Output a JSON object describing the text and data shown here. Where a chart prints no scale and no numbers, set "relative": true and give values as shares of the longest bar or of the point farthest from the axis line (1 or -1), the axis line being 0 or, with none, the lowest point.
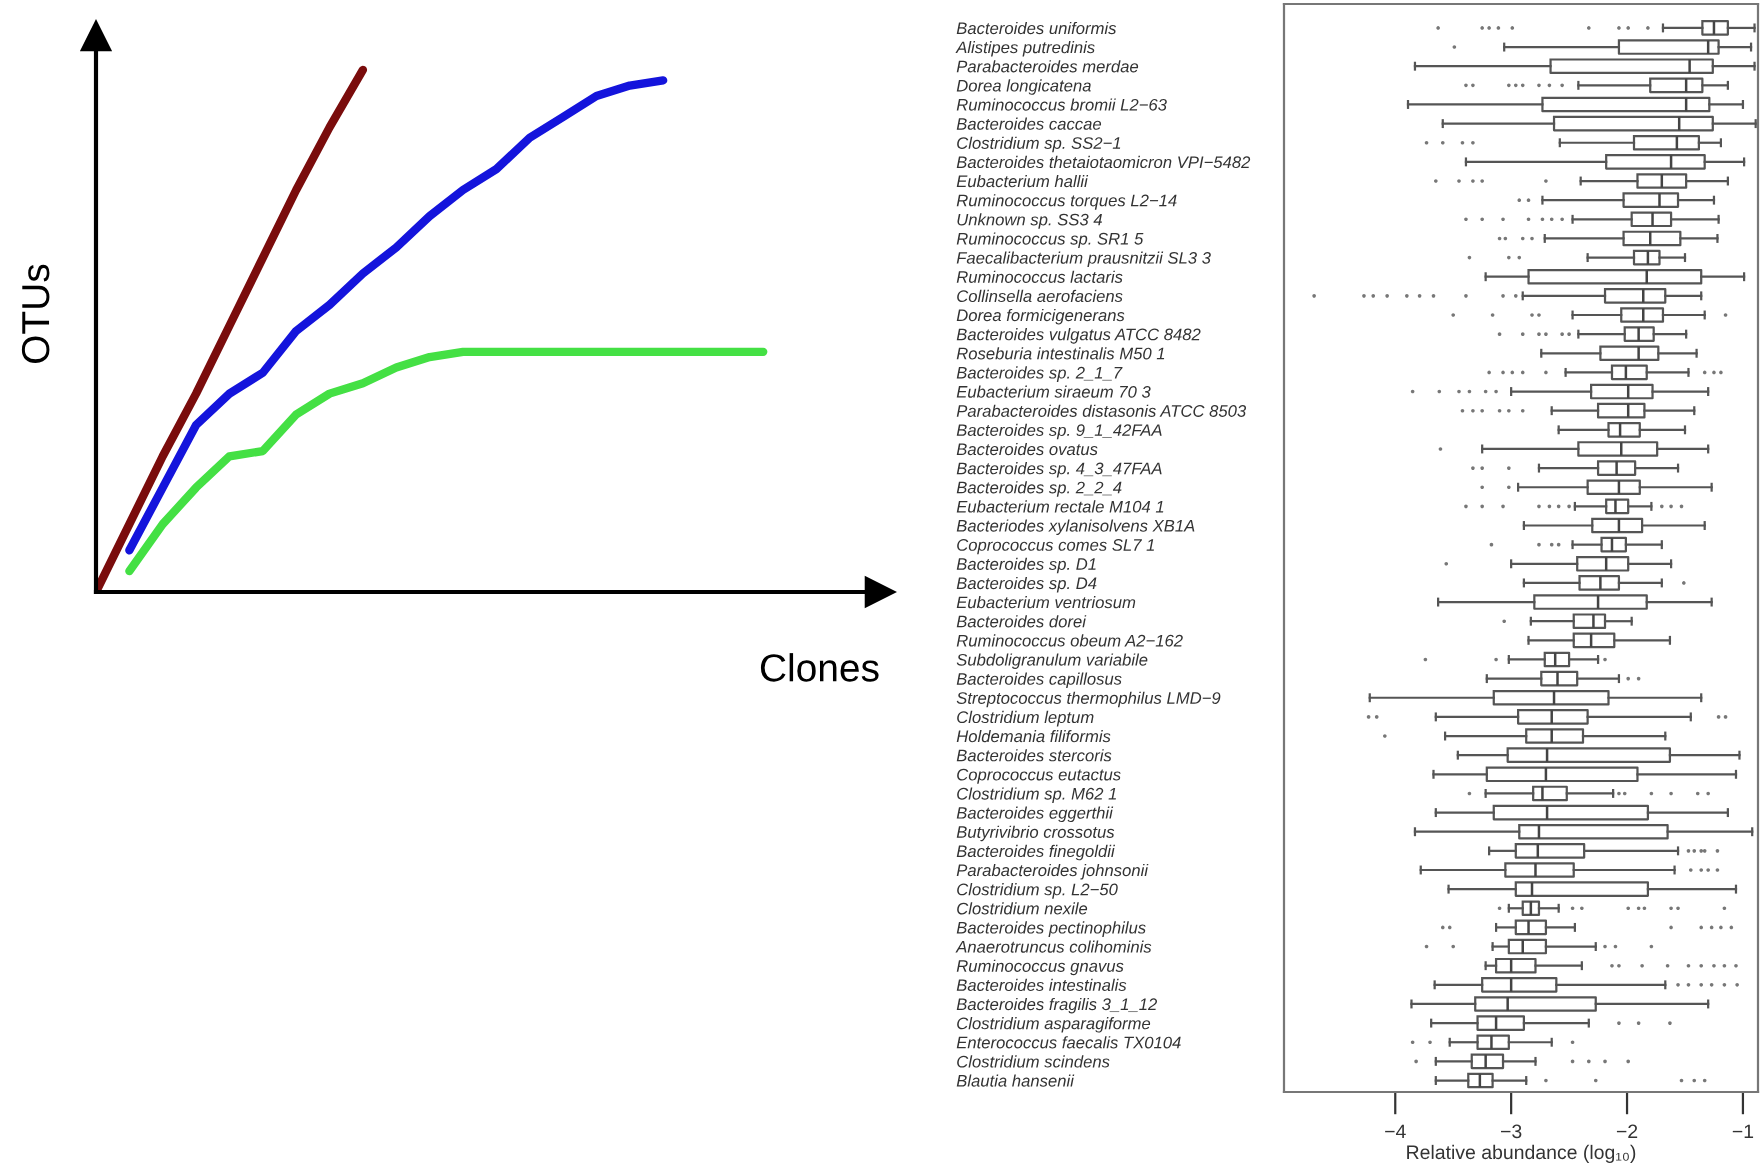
{
  "chart_data": [
    {
      "type": "line",
      "xlabel": "Clones",
      "ylabel": "OTUs",
      "relative": true,
      "categories": [
        null,
        null,
        null,
        null,
        null,
        null,
        null,
        null,
        null,
        null,
        null,
        null,
        null,
        null,
        null,
        null,
        null,
        null,
        null,
        null,
        null,
        null,
        null,
        null
      ],
      "series": [
        {
          "color": "#7a0c0c",
          "values": [
            0,
            0.13,
            0.26,
            0.38,
            0.51,
            0.64,
            0.77,
            0.89,
            1.0,
            null,
            null,
            null,
            null,
            null,
            null,
            null,
            null,
            null,
            null,
            null,
            null,
            null,
            null,
            null
          ]
        },
        {
          "color": "#1414dc",
          "values": [
            null,
            0.08,
            0.2,
            0.32,
            0.38,
            0.42,
            0.5,
            0.55,
            0.61,
            0.66,
            0.72,
            0.77,
            0.81,
            0.87,
            0.91,
            0.95,
            0.97,
            0.98,
            null,
            null,
            null,
            null,
            null,
            null
          ]
        },
        {
          "color": "#44e044",
          "values": [
            null,
            0.04,
            0.13,
            0.2,
            0.26,
            0.27,
            0.34,
            0.38,
            0.4,
            0.43,
            0.45,
            0.46,
            0.46,
            0.46,
            0.46,
            0.46,
            0.46,
            0.46,
            0.46,
            0.46,
            0.46,
            null,
            null,
            null
          ]
        }
      ]
    },
    {
      "type": "box",
      "orientation": "horizontal",
      "xlabel": "Relative abundance (log₁₀)",
      "xlim": [
        -4.96,
        -0.87
      ],
      "xticks": [
        {
          "value": -4,
          "label": "−4"
        },
        {
          "value": -3,
          "label": "−3"
        },
        {
          "value": -2,
          "label": "−2"
        },
        {
          "value": -1,
          "label": "−1"
        }
      ],
      "categories": [
        "Bacteroides uniformis",
        "Alistipes putredinis",
        "Parabacteroides merdae",
        "Dorea longicatena",
        "Ruminococcus bromii L2−63",
        "Bacteroides caccae",
        "Clostridium sp. SS2−1",
        "Bacteroides thetaiotaomicron VPI−5482",
        "Eubacterium hallii",
        "Ruminococcus torques L2−14",
        "Unknown sp. SS3 4",
        "Ruminococcus sp. SR1 5",
        "Faecalibacterium prausnitzii SL3 3",
        "Ruminococcus lactaris",
        "Collinsella aerofaciens",
        "Dorea formicigenerans",
        "Bacteroides vulgatus ATCC 8482",
        "Roseburia intestinalis M50 1",
        "Bacteroides sp. 2_1_7",
        "Eubacterium siraeum 70 3",
        "Parabacteroides distasonis ATCC 8503",
        "Bacteroides sp. 9_1_42FAA",
        "Bacteroides ovatus",
        "Bacteroides sp. 4_3_47FAA",
        "Bacteroides sp. 2_2_4",
        "Eubacterium rectale M104 1",
        "Bacteriodes xylanisolvens XB1A",
        "Coprococcus comes SL7 1",
        "Bacteroides sp. D1",
        "Bacteroides sp. D4",
        "Eubacterium ventriosum",
        "Bacteroides dorei",
        "Ruminococcus obeum A2−162",
        "Subdoligranulum variabile",
        "Bacteroides capillosus",
        "Streptococcus thermophilus LMD−9",
        "Clostridium leptum",
        "Holdemania filiformis",
        "Bacteroides stercoris",
        "Coprococcus eutactus",
        "Clostridium sp. M62 1",
        "Bacteroides eggerthii",
        "Butyrivibrio crossotus",
        "Bacteroides finegoldii",
        "Parabacteroides johnsonii",
        "Clostridium sp. L2−50",
        "Clostridium nexile",
        "Bacteroides pectinophilus",
        "Anaerotruncus colihominis",
        "Ruminococcus gnavus",
        "Bacteroides intestinalis",
        "Bacteroides fragilis 3_1_12",
        "Clostridium asparagiforme",
        "Enterococcus faecalis TX0104",
        "Clostridium scindens",
        "Blautia hansenii"
      ],
      "boxes": [
        {
          "low": -1.69,
          "q1": -1.35,
          "median": -1.25,
          "q3": -1.13,
          "high": -0.9,
          "outliers": [
            -3.63,
            -3.25,
            -3.19,
            -3.11,
            -2.99,
            -2.33,
            -2.07,
            -1.99,
            -1.82
          ]
        },
        {
          "low": -3.06,
          "q1": -2.07,
          "median": -1.3,
          "q3": -1.21,
          "high": -0.93,
          "outliers": [
            -3.49
          ]
        },
        {
          "low": -3.83,
          "q1": -2.66,
          "median": -1.46,
          "q3": -1.26,
          "high": -0.9
        },
        {
          "low": -2.42,
          "q1": -1.8,
          "median": -1.49,
          "q3": -1.35,
          "high": -1.13,
          "outliers": [
            -3.39,
            -3.33,
            -3.02,
            -2.96,
            -2.9,
            -2.76,
            -2.67,
            -2.56
          ]
        },
        {
          "low": -3.89,
          "q1": -2.73,
          "median": -1.49,
          "q3": -1.29,
          "high": -1.0
        },
        {
          "low": -3.59,
          "q1": -2.63,
          "median": -1.55,
          "q3": -1.26,
          "high": -0.89
        },
        {
          "low": -2.58,
          "q1": -1.94,
          "median": -1.57,
          "q3": -1.38,
          "high": -1.19,
          "outliers": [
            -3.73,
            -3.59,
            -3.42,
            -3.33
          ]
        },
        {
          "low": -3.39,
          "q1": -2.18,
          "median": -1.62,
          "q3": -1.33,
          "high": -0.99
        },
        {
          "low": -2.4,
          "q1": -1.91,
          "median": -1.7,
          "q3": -1.49,
          "high": -1.13,
          "outliers": [
            -3.65,
            -3.45,
            -3.33,
            -3.25,
            -2.7
          ]
        },
        {
          "low": -2.73,
          "q1": -2.03,
          "median": -1.72,
          "q3": -1.56,
          "high": -1.25,
          "outliers": [
            -2.93,
            -2.85
          ]
        },
        {
          "low": -2.47,
          "q1": -1.96,
          "median": -1.78,
          "q3": -1.62,
          "high": -1.21,
          "outliers": [
            -3.39,
            -3.25,
            -3.07,
            -2.85,
            -2.73,
            -2.65,
            -2.56
          ]
        },
        {
          "low": -2.71,
          "q1": -2.03,
          "median": -1.8,
          "q3": -1.54,
          "high": -1.22,
          "outliers": [
            -3.1,
            -3.05,
            -2.9,
            -2.82
          ]
        },
        {
          "low": -2.34,
          "q1": -1.94,
          "median": -1.82,
          "q3": -1.72,
          "high": -1.5,
          "outliers": [
            -3.36,
            -3.02,
            -2.93
          ]
        },
        {
          "low": -3.22,
          "q1": -2.85,
          "median": -1.83,
          "q3": -1.36,
          "high": -0.99
        },
        {
          "low": -2.9,
          "q1": -2.19,
          "median": -1.86,
          "q3": -1.67,
          "high": -1.36,
          "outliers": [
            -4.7,
            -4.27,
            -4.19,
            -4.07,
            -3.9,
            -3.79,
            -3.67,
            -3.39,
            -3.07,
            -2.96
          ]
        },
        {
          "low": -2.47,
          "q1": -2.05,
          "median": -1.86,
          "q3": -1.69,
          "high": -1.33,
          "outliers": [
            -3.5,
            -3.16,
            -2.82,
            -2.76,
            -1.15
          ]
        },
        {
          "low": -2.42,
          "q1": -2.02,
          "median": -1.9,
          "q3": -1.77,
          "high": -1.49,
          "outliers": [
            -3.1,
            -2.9,
            -2.76,
            -2.7,
            -2.56,
            -2.5
          ]
        },
        {
          "low": -2.74,
          "q1": -2.23,
          "median": -1.9,
          "q3": -1.73,
          "high": -1.4
        },
        {
          "low": -2.53,
          "q1": -2.13,
          "median": -2.01,
          "q3": -1.83,
          "high": -1.47,
          "outliers": [
            -3.19,
            -3.07,
            -2.99,
            -2.9,
            -2.7,
            -1.33,
            -1.25,
            -1.19
          ]
        },
        {
          "low": -3.0,
          "q1": -2.31,
          "median": -1.99,
          "q3": -1.78,
          "high": -1.3,
          "outliers": [
            -3.85,
            -3.62,
            -3.45,
            -3.36,
            -3.22,
            -3.13
          ]
        },
        {
          "low": -2.65,
          "q1": -2.25,
          "median": -1.99,
          "q3": -1.85,
          "high": -1.42,
          "outliers": [
            -3.42,
            -3.33,
            -3.25,
            -3.1,
            -3.02,
            -2.9
          ]
        },
        {
          "low": -2.59,
          "q1": -2.16,
          "median": -2.06,
          "q3": -1.89,
          "high": -1.5
        },
        {
          "low": -3.25,
          "q1": -2.42,
          "median": -2.05,
          "q3": -1.74,
          "high": -1.3,
          "outliers": [
            -3.61
          ]
        },
        {
          "low": -2.76,
          "q1": -2.25,
          "median": -2.09,
          "q3": -1.93,
          "high": -1.56,
          "outliers": [
            -3.33,
            -3.25,
            -3.02
          ]
        },
        {
          "low": -2.94,
          "q1": -2.34,
          "median": -2.07,
          "q3": -1.89,
          "high": -1.27,
          "outliers": [
            -3.25,
            -3.02
          ]
        },
        {
          "low": -2.45,
          "q1": -2.18,
          "median": -2.1,
          "q3": -1.99,
          "high": -1.79,
          "outliers": [
            -3.39,
            -3.25,
            -3.07,
            -2.76,
            -2.67,
            -2.59,
            -2.5,
            -1.7,
            -1.62,
            -1.53
          ]
        },
        {
          "low": -2.89,
          "q1": -2.3,
          "median": -2.07,
          "q3": -1.87,
          "high": -1.33
        },
        {
          "low": -2.47,
          "q1": -2.22,
          "median": -2.13,
          "q3": -2.01,
          "high": -1.7,
          "outliers": [
            -3.17,
            -2.76,
            -2.65,
            -2.59
          ]
        },
        {
          "low": -3.0,
          "q1": -2.43,
          "median": -2.18,
          "q3": -1.99,
          "high": -1.62,
          "outliers": [
            -3.56
          ]
        },
        {
          "low": -2.89,
          "q1": -2.41,
          "median": -2.23,
          "q3": -2.07,
          "high": -1.7,
          "outliers": [
            -1.51
          ]
        },
        {
          "low": -3.63,
          "q1": -2.8,
          "median": -2.25,
          "q3": -1.83,
          "high": -1.27
        },
        {
          "low": -2.83,
          "q1": -2.46,
          "median": -2.29,
          "q3": -2.19,
          "high": -1.96,
          "outliers": [
            -3.06
          ]
        },
        {
          "low": -2.85,
          "q1": -2.46,
          "median": -2.31,
          "q3": -2.11,
          "high": -1.63
        },
        {
          "low": -3.02,
          "q1": -2.71,
          "median": -2.62,
          "q3": -2.5,
          "high": -2.25,
          "outliers": [
            -3.74,
            -3.13,
            -2.19
          ]
        },
        {
          "low": -3.21,
          "q1": -2.74,
          "median": -2.6,
          "q3": -2.43,
          "high": -2.07,
          "outliers": [
            -1.99,
            -1.9
          ]
        },
        {
          "low": -4.22,
          "q1": -3.15,
          "median": -2.63,
          "q3": -2.16,
          "high": -1.36
        },
        {
          "low": -3.65,
          "q1": -2.94,
          "median": -2.65,
          "q3": -2.34,
          "high": -1.45,
          "outliers": [
            -4.23,
            -4.16,
            -1.21,
            -1.15
          ]
        },
        {
          "low": -3.57,
          "q1": -2.87,
          "median": -2.65,
          "q3": -2.38,
          "high": -1.67,
          "outliers": [
            -4.09
          ]
        },
        {
          "low": -3.46,
          "q1": -3.03,
          "median": -2.69,
          "q3": -1.63,
          "high": -1.03
        },
        {
          "low": -3.67,
          "q1": -3.21,
          "median": -2.7,
          "q3": -1.91,
          "high": -1.06
        },
        {
          "low": -3.22,
          "q1": -2.81,
          "median": -2.73,
          "q3": -2.52,
          "high": -2.12,
          "outliers": [
            -3.36,
            -2.07,
            -2.02,
            -1.79,
            -1.62,
            -1.39,
            -1.3
          ]
        },
        {
          "low": -3.65,
          "q1": -3.15,
          "median": -2.69,
          "q3": -1.82,
          "high": -1.13
        },
        {
          "low": -3.83,
          "q1": -2.93,
          "median": -2.76,
          "q3": -1.65,
          "high": -0.92
        },
        {
          "low": -3.19,
          "q1": -2.96,
          "median": -2.77,
          "q3": -2.37,
          "high": -1.56,
          "outliers": [
            -1.47,
            -1.42,
            -1.36,
            -1.33,
            -1.22
          ]
        },
        {
          "low": -3.78,
          "q1": -3.05,
          "median": -2.79,
          "q3": -2.46,
          "high": -1.59,
          "outliers": [
            -1.45,
            -1.36,
            -1.3,
            -1.22
          ]
        },
        {
          "low": -3.54,
          "q1": -2.96,
          "median": -2.82,
          "q3": -1.82,
          "high": -1.06
        },
        {
          "low": -3.02,
          "q1": -2.9,
          "median": -2.83,
          "q3": -2.76,
          "high": -2.59,
          "outliers": [
            -3.1,
            -2.47,
            -2.39,
            -1.99,
            -1.9,
            -1.85,
            -1.62,
            -1.56,
            -1.16
          ]
        },
        {
          "low": -3.13,
          "q1": -2.96,
          "median": -2.85,
          "q3": -2.7,
          "high": -2.45,
          "outliers": [
            -3.59,
            -3.53,
            -1.62,
            -1.36,
            -1.27,
            -1.19,
            -1.1
          ]
        },
        {
          "low": -3.16,
          "q1": -3.02,
          "median": -2.9,
          "q3": -2.7,
          "high": -2.27,
          "outliers": [
            -3.73,
            -3.5,
            -2.19,
            -2.1,
            -1.79
          ]
        },
        {
          "low": -3.22,
          "q1": -3.13,
          "median": -3.0,
          "q3": -2.79,
          "high": -2.39,
          "outliers": [
            -2.13,
            -2.07,
            -1.87,
            -1.65,
            -1.47,
            -1.36,
            -1.25,
            -1.16,
            -1.06
          ]
        },
        {
          "low": -3.66,
          "q1": -3.25,
          "median": -3.0,
          "q3": -2.61,
          "high": -1.67,
          "outliers": [
            -1.56,
            -1.47,
            -1.36,
            -1.27,
            -1.16,
            -1.05
          ]
        },
        {
          "low": -3.86,
          "q1": -3.31,
          "median": -3.03,
          "q3": -2.27,
          "high": -1.3
        },
        {
          "low": -3.69,
          "q1": -3.29,
          "median": -3.13,
          "q3": -2.89,
          "high": -2.33,
          "outliers": [
            -2.07,
            -1.9,
            -1.63
          ]
        },
        {
          "low": -3.53,
          "q1": -3.29,
          "median": -3.17,
          "q3": -3.02,
          "high": -2.65,
          "outliers": [
            -3.85,
            -3.7,
            -2.47
          ]
        },
        {
          "low": -3.65,
          "q1": -3.34,
          "median": -3.22,
          "q3": -3.07,
          "high": -2.79,
          "outliers": [
            -3.82,
            -2.47,
            -2.33,
            -2.19,
            -1.99
          ]
        },
        {
          "low": -3.65,
          "q1": -3.37,
          "median": -3.27,
          "q3": -3.16,
          "high": -2.87,
          "outliers": [
            -2.7,
            -2.27,
            -1.53,
            -1.42,
            -1.33
          ]
        }
      ]
    }
  ]
}
